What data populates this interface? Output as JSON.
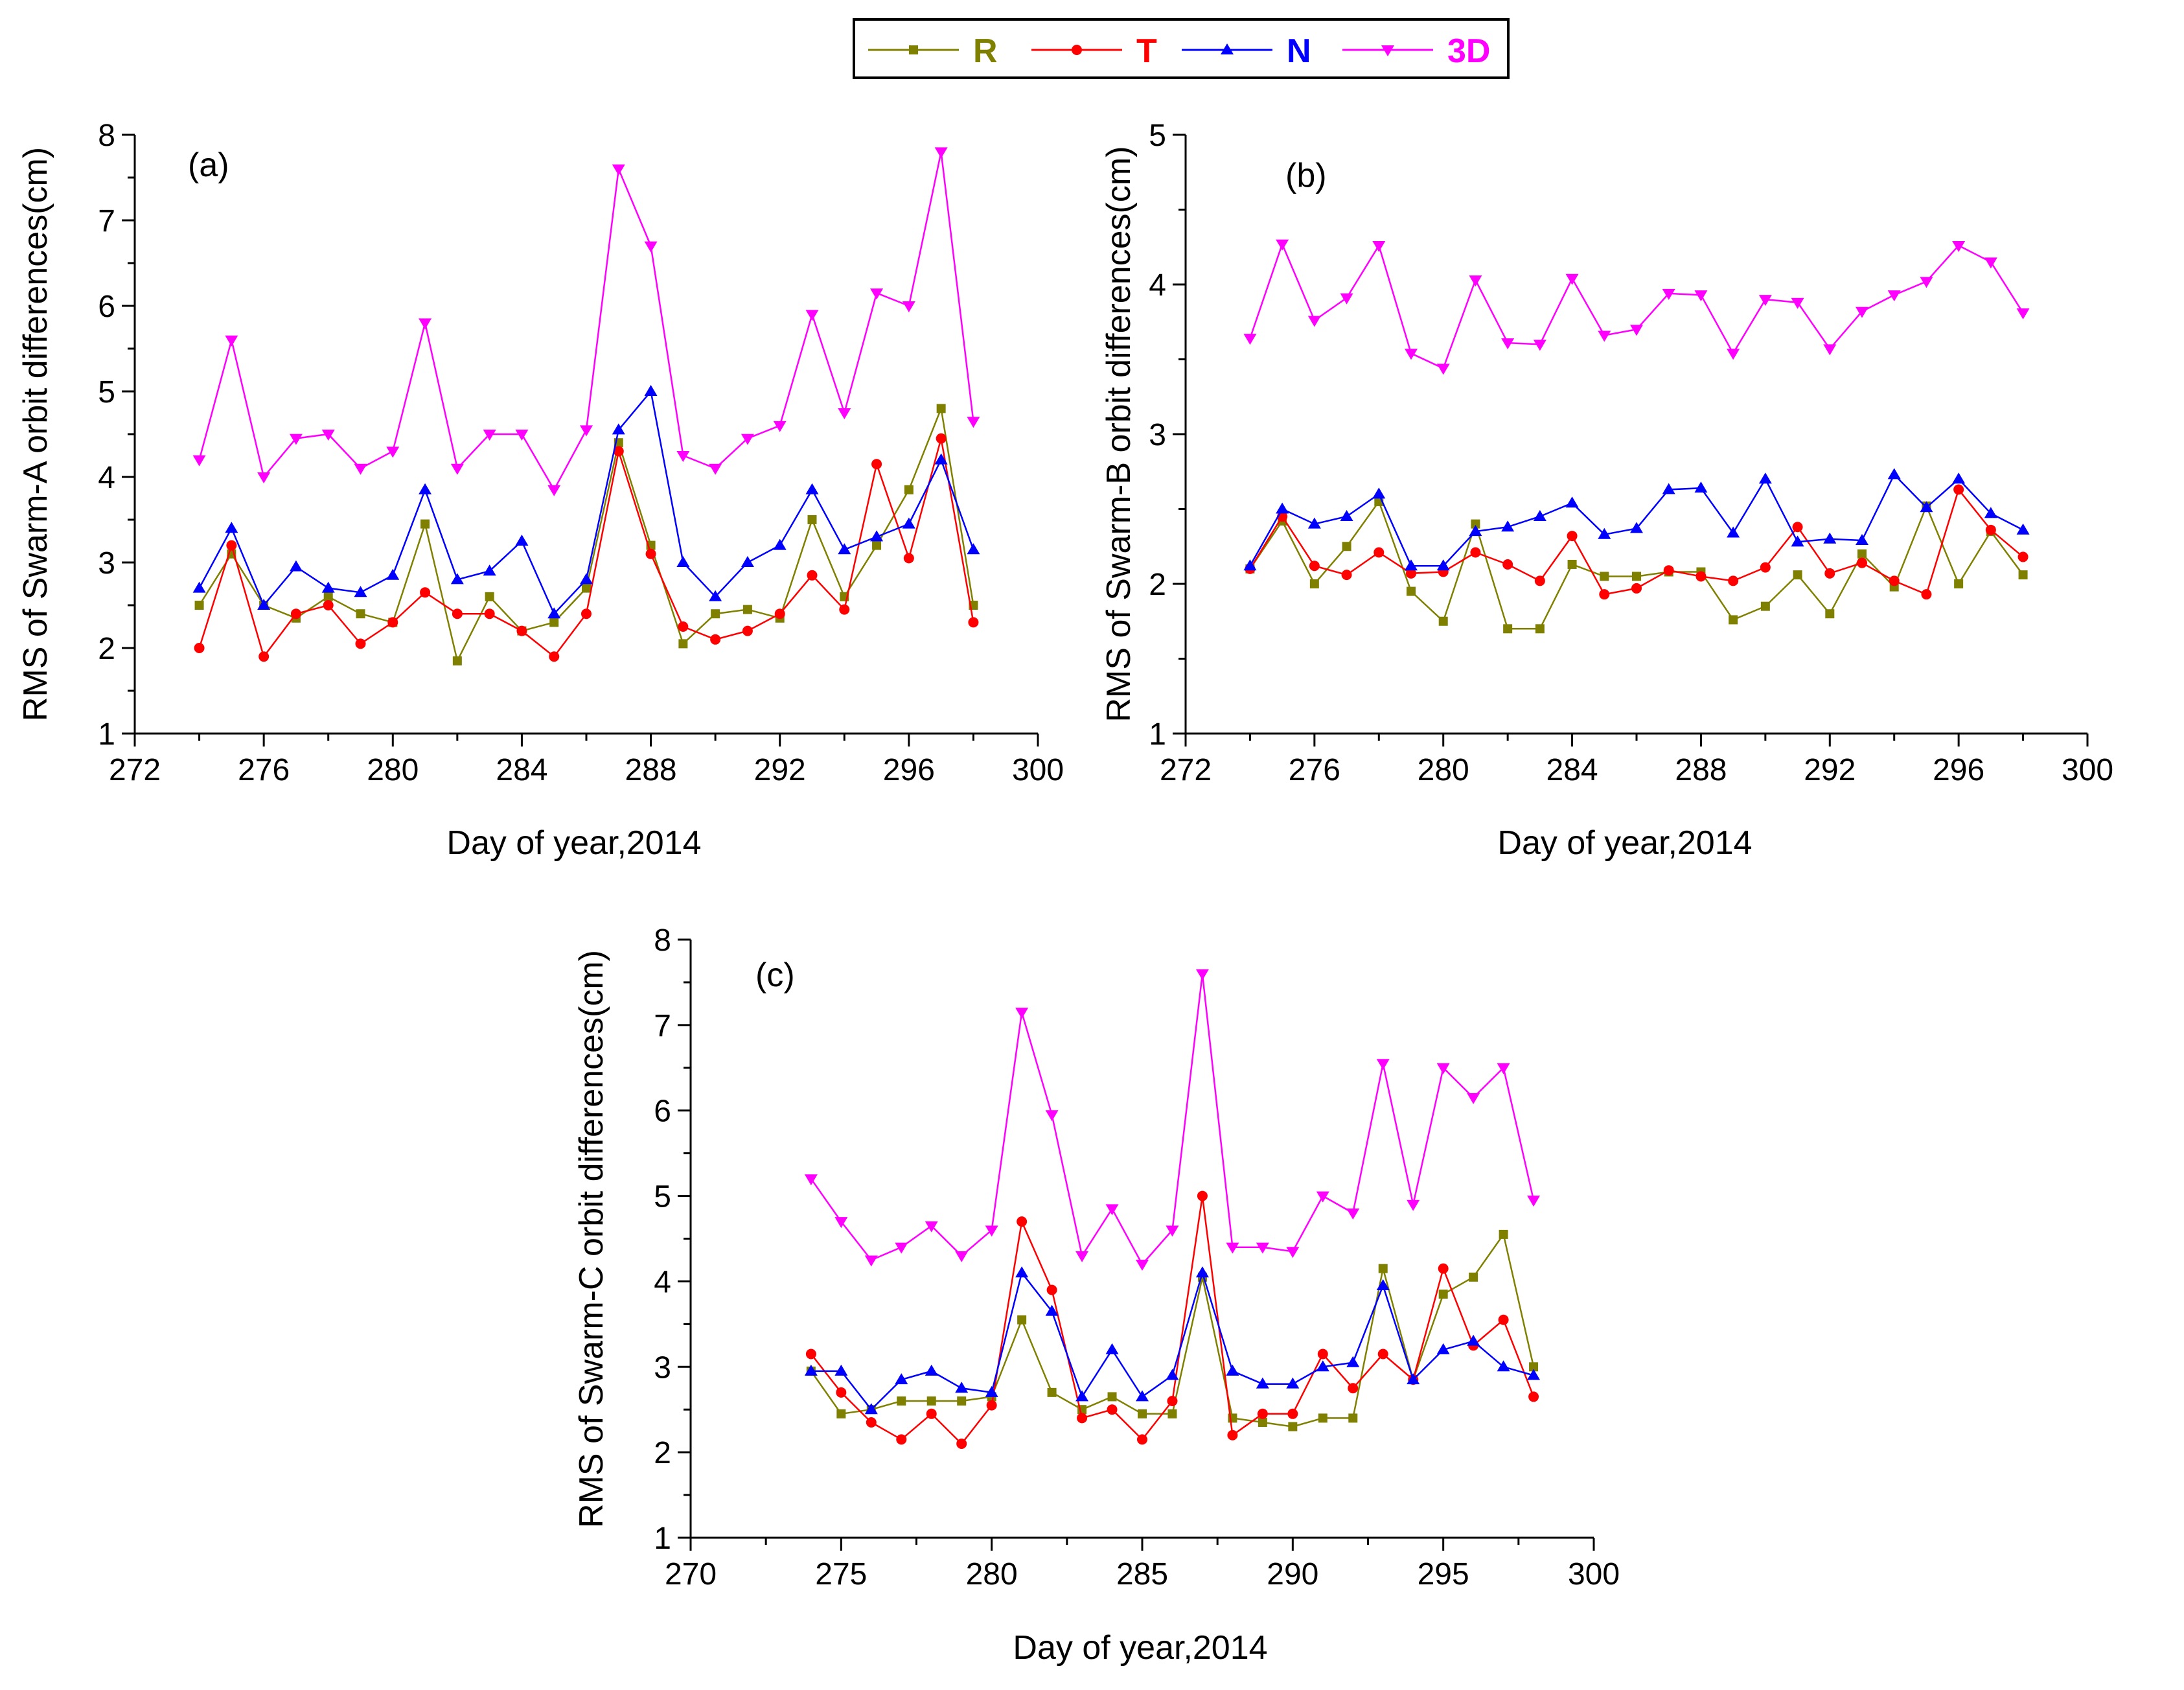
{
  "series_styles": [
    {
      "key": "R",
      "color": "#808000",
      "marker": "square"
    },
    {
      "key": "T",
      "color": "#ff0000",
      "marker": "circle"
    },
    {
      "key": "N",
      "color": "#0000ff",
      "marker": "triangle-up"
    },
    {
      "key": "3D",
      "color": "#ff00ff",
      "marker": "triangle-down"
    }
  ],
  "legend": {
    "position": "top-center",
    "entries": [
      "R",
      "T",
      "N",
      "3D"
    ]
  },
  "chart_data": [
    {
      "type": "line",
      "panel_label": "(a)",
      "xlabel": "Day of year,2014",
      "ylabel": "RMS of Swarm-A orbit differences(cm)",
      "xlim": [
        272,
        300
      ],
      "ylim": [
        1,
        8
      ],
      "xticks": [
        272,
        276,
        280,
        284,
        288,
        292,
        296,
        300
      ],
      "yticks": [
        1,
        2,
        3,
        4,
        5,
        6,
        7,
        8
      ],
      "x": [
        274,
        275,
        276,
        277,
        278,
        279,
        280,
        281,
        282,
        283,
        284,
        285,
        286,
        287,
        288,
        289,
        290,
        291,
        292,
        293,
        294,
        295,
        296,
        297,
        298
      ],
      "series": [
        {
          "name": "R",
          "values": [
            2.5,
            3.1,
            2.5,
            2.35,
            2.6,
            2.4,
            2.3,
            3.45,
            1.85,
            2.6,
            2.2,
            2.3,
            2.7,
            4.4,
            3.2,
            2.05,
            2.4,
            2.45,
            2.35,
            3.5,
            2.6,
            3.2,
            3.85,
            4.8,
            2.5
          ]
        },
        {
          "name": "T",
          "values": [
            2.0,
            3.2,
            1.9,
            2.4,
            2.5,
            2.05,
            2.3,
            2.65,
            2.4,
            2.4,
            2.2,
            1.9,
            2.4,
            4.3,
            3.1,
            2.25,
            2.1,
            2.2,
            2.4,
            2.85,
            2.45,
            4.15,
            3.05,
            4.45,
            2.3
          ]
        },
        {
          "name": "N",
          "values": [
            2.7,
            3.4,
            2.5,
            2.95,
            2.7,
            2.65,
            2.85,
            3.85,
            2.8,
            2.9,
            3.25,
            2.4,
            2.8,
            4.55,
            5.0,
            3.0,
            2.6,
            3.0,
            3.2,
            3.85,
            3.15,
            3.3,
            3.45,
            4.2,
            3.15
          ]
        },
        {
          "name": "3D",
          "values": [
            4.2,
            5.6,
            4.0,
            4.45,
            4.5,
            4.1,
            4.3,
            5.8,
            4.1,
            4.5,
            4.5,
            3.85,
            4.55,
            7.6,
            6.7,
            4.25,
            4.1,
            4.45,
            4.6,
            5.9,
            4.75,
            6.15,
            6.0,
            7.8,
            4.65
          ]
        }
      ]
    },
    {
      "type": "line",
      "panel_label": "(b)",
      "xlabel": "Day of year,2014",
      "ylabel": "RMS of Swarm-B orbit differences(cm)",
      "xlim": [
        272,
        300
      ],
      "ylim": [
        1,
        5
      ],
      "xticks": [
        272,
        276,
        280,
        284,
        288,
        292,
        296,
        300
      ],
      "yticks": [
        1,
        2,
        3,
        4,
        5
      ],
      "x": [
        274,
        275,
        276,
        277,
        278,
        279,
        280,
        281,
        282,
        283,
        284,
        285,
        286,
        287,
        288,
        289,
        290,
        291,
        292,
        293,
        294,
        295,
        296,
        297,
        298
      ],
      "series": [
        {
          "name": "R",
          "values": [
            2.1,
            2.42,
            2.0,
            2.25,
            2.55,
            1.95,
            1.75,
            2.4,
            1.7,
            1.7,
            2.13,
            2.05,
            2.05,
            2.08,
            2.08,
            1.76,
            1.85,
            2.06,
            1.8,
            2.2,
            1.98,
            2.52,
            2.0,
            2.35,
            2.06
          ]
        },
        {
          "name": "T",
          "values": [
            2.1,
            2.45,
            2.12,
            2.06,
            2.21,
            2.07,
            2.08,
            2.21,
            2.13,
            2.02,
            2.32,
            1.93,
            1.97,
            2.09,
            2.05,
            2.02,
            2.11,
            2.38,
            2.07,
            2.14,
            2.02,
            1.93,
            2.63,
            2.36,
            2.18
          ]
        },
        {
          "name": "N",
          "values": [
            2.12,
            2.5,
            2.4,
            2.45,
            2.6,
            2.12,
            2.12,
            2.35,
            2.38,
            2.45,
            2.54,
            2.33,
            2.37,
            2.63,
            2.64,
            2.34,
            2.7,
            2.28,
            2.3,
            2.29,
            2.73,
            2.51,
            2.7,
            2.47,
            2.36
          ]
        },
        {
          "name": "3D",
          "values": [
            3.64,
            4.27,
            3.76,
            3.91,
            4.26,
            3.54,
            3.44,
            4.03,
            3.61,
            3.6,
            4.04,
            3.66,
            3.7,
            3.94,
            3.93,
            3.54,
            3.9,
            3.88,
            3.57,
            3.82,
            3.93,
            4.02,
            4.26,
            4.15,
            3.81
          ]
        }
      ]
    },
    {
      "type": "line",
      "panel_label": "(c)",
      "xlabel": "Day of year,2014",
      "ylabel": "RMS of Swarm-C orbit differences(cm)",
      "xlim": [
        270,
        300
      ],
      "ylim": [
        1,
        8
      ],
      "xticks": [
        270,
        275,
        280,
        285,
        290,
        295,
        300
      ],
      "yticks": [
        1,
        2,
        3,
        4,
        5,
        6,
        7,
        8
      ],
      "x": [
        274,
        275,
        276,
        277,
        278,
        279,
        280,
        281,
        282,
        283,
        284,
        285,
        286,
        287,
        288,
        289,
        290,
        291,
        292,
        293,
        294,
        295,
        296,
        297,
        298
      ],
      "series": [
        {
          "name": "R",
          "values": [
            2.95,
            2.45,
            2.5,
            2.6,
            2.6,
            2.6,
            2.65,
            3.55,
            2.7,
            2.5,
            2.65,
            2.45,
            2.45,
            4.05,
            2.4,
            2.35,
            2.3,
            2.4,
            2.4,
            4.15,
            2.85,
            3.85,
            4.05,
            4.55,
            3.0
          ]
        },
        {
          "name": "T",
          "values": [
            3.15,
            2.7,
            2.35,
            2.15,
            2.45,
            2.1,
            2.55,
            4.7,
            3.9,
            2.4,
            2.5,
            2.15,
            2.6,
            5.0,
            2.2,
            2.45,
            2.45,
            3.15,
            2.75,
            3.15,
            2.85,
            4.15,
            3.25,
            3.55,
            2.65
          ]
        },
        {
          "name": "N",
          "values": [
            2.95,
            2.95,
            2.5,
            2.85,
            2.95,
            2.75,
            2.7,
            4.1,
            3.65,
            2.65,
            3.2,
            2.65,
            2.9,
            4.1,
            2.95,
            2.8,
            2.8,
            3.0,
            3.05,
            3.95,
            2.85,
            3.2,
            3.3,
            3.0,
            2.9
          ]
        },
        {
          "name": "3D",
          "values": [
            5.2,
            4.7,
            4.25,
            4.4,
            4.65,
            4.3,
            4.6,
            7.15,
            5.95,
            4.3,
            4.85,
            4.2,
            4.6,
            7.6,
            4.4,
            4.4,
            4.35,
            5.0,
            4.8,
            6.55,
            4.9,
            6.5,
            6.15,
            6.5,
            4.95
          ]
        }
      ]
    }
  ]
}
